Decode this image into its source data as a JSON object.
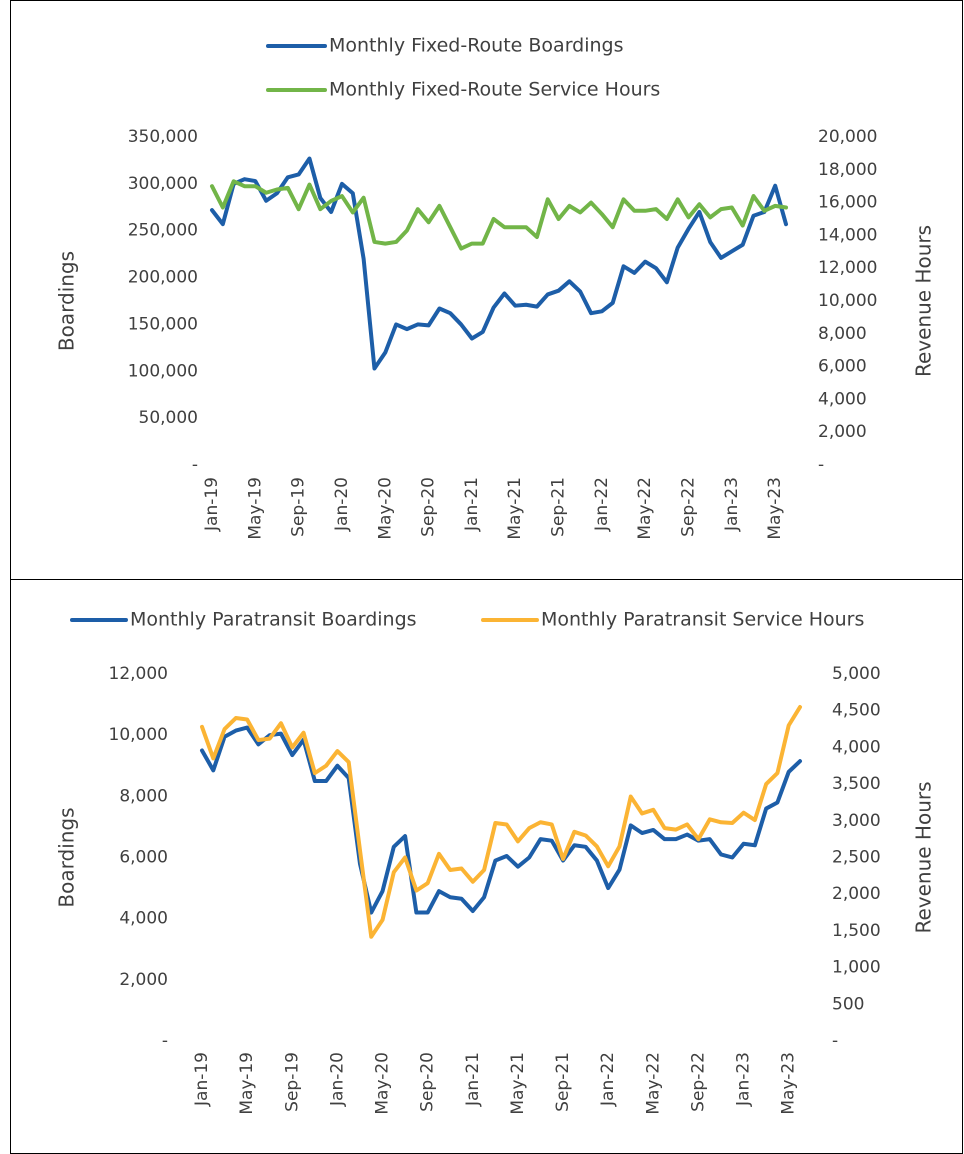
{
  "chart_data": [
    {
      "type": "line",
      "categories": [
        "Jan-19",
        null,
        null,
        null,
        "May-19",
        null,
        null,
        null,
        "Sep-19",
        null,
        null,
        null,
        "Jan-20",
        null,
        null,
        null,
        "May-20",
        null,
        null,
        null,
        "Sep-20",
        null,
        null,
        null,
        "Jan-21",
        null,
        null,
        null,
        "May-21",
        null,
        null,
        null,
        "Sep-21",
        null,
        null,
        null,
        "Jan-22",
        null,
        null,
        null,
        "May-22",
        null,
        null,
        null,
        "Sep-22",
        null,
        null,
        null,
        "Jan-23",
        null,
        null,
        null,
        "May-23",
        null
      ],
      "series": [
        {
          "name": "Monthly Fixed-Route Boardings",
          "color": "#1d5ea8",
          "axis": "y",
          "values": [
            272000,
            257000,
            300000,
            305000,
            303000,
            282000,
            290000,
            307000,
            310000,
            327000,
            285000,
            270000,
            300000,
            290000,
            220000,
            103000,
            120000,
            150000,
            145000,
            150000,
            149000,
            167000,
            162000,
            150000,
            135000,
            142000,
            168000,
            183000,
            170000,
            171000,
            169000,
            182000,
            186000,
            196000,
            185000,
            162000,
            164000,
            173000,
            212000,
            205000,
            217000,
            210000,
            195000,
            232000,
            252000,
            270000,
            238000,
            221000,
            228000,
            235000,
            266000,
            270000,
            298000,
            257000
          ]
        },
        {
          "name": "Monthly Fixed-Route Service Hours",
          "color": "#72b548",
          "axis": "y2",
          "values": [
            17000,
            15700,
            17300,
            17000,
            17000,
            16600,
            16800,
            16900,
            15600,
            17100,
            15600,
            16100,
            16400,
            15400,
            16300,
            13600,
            13500,
            13600,
            14300,
            15600,
            14800,
            15800,
            14500,
            13200,
            13500,
            13500,
            15000,
            14500,
            14500,
            14500,
            13900,
            16200,
            15000,
            15800,
            15400,
            16000,
            15300,
            14500,
            16200,
            15500,
            15500,
            15600,
            15000,
            16200,
            15100,
            15900,
            15100,
            15600,
            15700,
            14600,
            16400,
            15500,
            15800,
            15700
          ]
        }
      ],
      "y_label": "Boardings",
      "y2_label": "Revenue Hours",
      "ylim": [
        0,
        350000
      ],
      "yticks": [
        {
          "value": 0,
          "label": "-"
        },
        {
          "value": 50000,
          "label": "50,000"
        },
        {
          "value": 100000,
          "label": "100,000"
        },
        {
          "value": 150000,
          "label": "150,000"
        },
        {
          "value": 200000,
          "label": "200,000"
        },
        {
          "value": 250000,
          "label": "250,000"
        },
        {
          "value": 300000,
          "label": "300,000"
        },
        {
          "value": 350000,
          "label": "350,000"
        }
      ],
      "y2lim": [
        0,
        20000
      ],
      "y2ticks": [
        {
          "value": 0,
          "label": "-"
        },
        {
          "value": 2000,
          "label": "2,000"
        },
        {
          "value": 4000,
          "label": "4,000"
        },
        {
          "value": 6000,
          "label": "6,000"
        },
        {
          "value": 8000,
          "label": "8,000"
        },
        {
          "value": 10000,
          "label": "10,000"
        },
        {
          "value": 12000,
          "label": "12,000"
        },
        {
          "value": 14000,
          "label": "14,000"
        },
        {
          "value": 16000,
          "label": "16,000"
        },
        {
          "value": 18000,
          "label": "18,000"
        },
        {
          "value": 20000,
          "label": "20,000"
        }
      ],
      "legend": "top",
      "grid": false
    },
    {
      "type": "line",
      "categories": [
        "Jan-19",
        null,
        null,
        null,
        "May-19",
        null,
        null,
        null,
        "Sep-19",
        null,
        null,
        null,
        "Jan-20",
        null,
        null,
        null,
        "May-20",
        null,
        null,
        null,
        "Sep-20",
        null,
        null,
        null,
        "Jan-21",
        null,
        null,
        null,
        "May-21",
        null,
        null,
        null,
        "Sep-21",
        null,
        null,
        null,
        "Jan-22",
        null,
        null,
        null,
        "May-22",
        null,
        null,
        null,
        "Sep-22",
        null,
        null,
        null,
        "Jan-23",
        null,
        null,
        null,
        "May-23",
        null
      ],
      "series": [
        {
          "name": "Monthly Paratransit Boardings",
          "color": "#1d5ea8",
          "axis": "y",
          "values": [
            9500,
            8850,
            9950,
            10150,
            10250,
            9700,
            10000,
            10050,
            9350,
            9850,
            8500,
            8500,
            9000,
            8600,
            5800,
            4200,
            4900,
            6350,
            6700,
            4200,
            4200,
            4900,
            4700,
            4650,
            4250,
            4700,
            5900,
            6050,
            5700,
            6000,
            6600,
            6550,
            5900,
            6400,
            6350,
            5900,
            5000,
            5600,
            7050,
            6800,
            6900,
            6600,
            6600,
            6750,
            6550,
            6600,
            6100,
            6000,
            6450,
            6400,
            7600,
            7800,
            8800,
            9150
          ]
        },
        {
          "name": "Monthly Paratransit Service Hours",
          "color": "#fbb434",
          "axis": "y2",
          "values": [
            4280,
            3850,
            4250,
            4400,
            4380,
            4100,
            4120,
            4330,
            4000,
            4200,
            3650,
            3750,
            3950,
            3800,
            2600,
            1420,
            1650,
            2300,
            2500,
            2050,
            2150,
            2550,
            2330,
            2350,
            2170,
            2330,
            2970,
            2950,
            2720,
            2900,
            2980,
            2950,
            2480,
            2850,
            2800,
            2650,
            2380,
            2650,
            3330,
            3100,
            3150,
            2900,
            2880,
            2950,
            2750,
            3020,
            2980,
            2970,
            3110,
            3010,
            3500,
            3650,
            4300,
            4550
          ]
        }
      ],
      "y_label": "Boardings",
      "y2_label": "Revenue Hours",
      "ylim": [
        0,
        12000
      ],
      "yticks": [
        {
          "value": 0,
          "label": "-"
        },
        {
          "value": 2000,
          "label": "2,000"
        },
        {
          "value": 4000,
          "label": "4,000"
        },
        {
          "value": 6000,
          "label": "6,000"
        },
        {
          "value": 8000,
          "label": "8,000"
        },
        {
          "value": 10000,
          "label": "10,000"
        },
        {
          "value": 12000,
          "label": "12,000"
        }
      ],
      "y2lim": [
        0,
        5000
      ],
      "y2ticks": [
        {
          "value": 0,
          "label": "-"
        },
        500,
        {
          "value": 1000,
          "label": "1,000"
        },
        {
          "value": 1500,
          "label": "1,500"
        },
        {
          "value": 2000,
          "label": "2,000"
        },
        {
          "value": 2500,
          "label": "2,500"
        },
        {
          "value": 3000,
          "label": "3,000"
        },
        {
          "value": 3500,
          "label": "3,500"
        },
        {
          "value": 4000,
          "label": "4,000"
        },
        {
          "value": 4500,
          "label": "4,500"
        },
        {
          "value": 5000,
          "label": "5,000"
        }
      ],
      "legend": "top",
      "grid": false
    }
  ]
}
